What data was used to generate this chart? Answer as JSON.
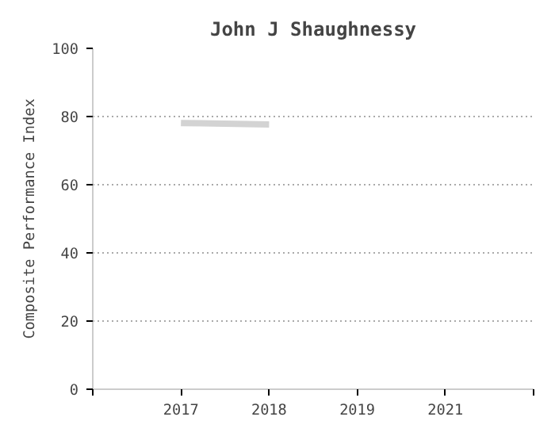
{
  "chart_data": {
    "type": "line",
    "title": "John J Shaughnessy",
    "ylabel": "Composite Performance Index",
    "categories": [
      "2017",
      "2018",
      "2019",
      "2021"
    ],
    "series": [
      {
        "color": "#d3d3d3",
        "values": [
          78.1,
          77.7,
          null,
          null
        ]
      }
    ],
    "ylim": [
      0,
      100
    ],
    "yticks": [
      0,
      20,
      40,
      60,
      80,
      100
    ],
    "grid": "y"
  }
}
